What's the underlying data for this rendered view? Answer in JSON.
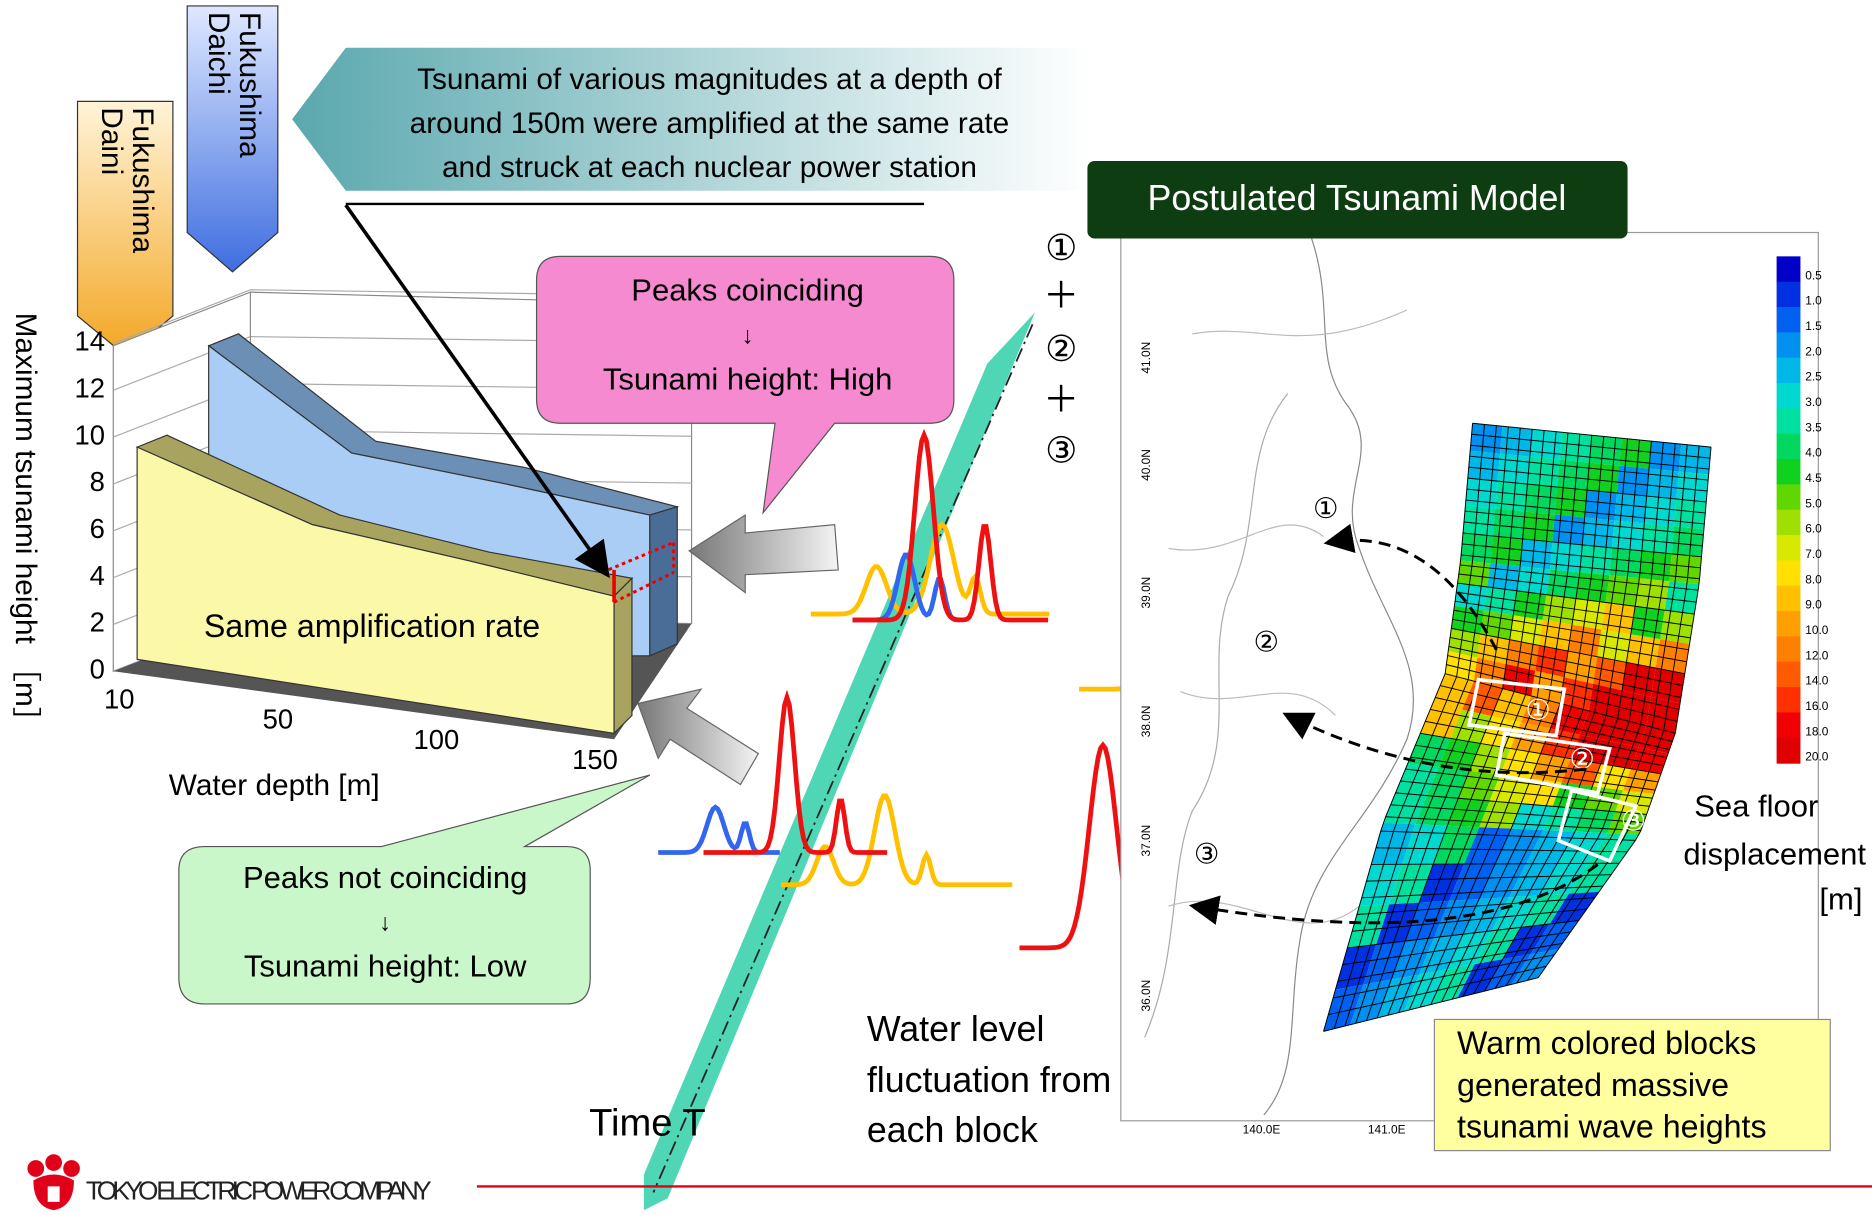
{
  "banners": [
    {
      "lines": [
        "Fukushima",
        "Daichi"
      ]
    },
    {
      "lines": [
        "Fukushima",
        "Daini"
      ]
    }
  ],
  "callout": [
    "Tsunami of various magnitudes at a depth of",
    "around 150m were amplified at the same rate",
    "and struck at each nuclear power station"
  ],
  "chart": {
    "y_axis_title": "Maximum tsunami height ［m］",
    "x_axis_title": "Water depth [m]",
    "yticks": [
      0,
      2,
      4,
      6,
      8,
      10,
      12,
      14
    ],
    "xticks": [
      10,
      50,
      100,
      150
    ],
    "label": "Same amplification rate"
  },
  "bubble_high": [
    "Peaks coinciding",
    "↓",
    "Tsunami height: High"
  ],
  "bubble_low": [
    "Peaks not coinciding",
    "↓",
    "Tsunami height: Low"
  ],
  "sum_labels": [
    "①",
    "＋",
    "②",
    "＋",
    "③"
  ],
  "time_label": "Time T",
  "water_level": [
    "Water level",
    "fluctuation from",
    "each block"
  ],
  "map": {
    "title": "Postulated Tsunami Model",
    "lat_labels": [
      "41.0N",
      "40.0N",
      "39.0N",
      "38.0N",
      "37.0N",
      "36.0N"
    ],
    "lon_labels": [
      "140.0E",
      "141.0E"
    ],
    "colorbar": [
      "0.5",
      "1.0",
      "1.5",
      "2.0",
      "2.5",
      "3.0",
      "3.5",
      "4.0",
      "4.5",
      "5.0",
      "6.0",
      "7.0",
      "8.0",
      "9.0",
      "10.0",
      "12.0",
      "14.0",
      "16.0",
      "18.0",
      "20.0"
    ],
    "block_labels": [
      "①",
      "②",
      "③"
    ],
    "wave_labels": [
      "①",
      "②",
      "③"
    ],
    "legend_title": [
      "Sea floor",
      "displacement",
      "[m]"
    ]
  },
  "note": [
    "Warm colored blocks",
    "generated massive",
    "tsunami wave heights"
  ],
  "footer": "TOKYO ELECTRIC POWER COMPANY"
}
